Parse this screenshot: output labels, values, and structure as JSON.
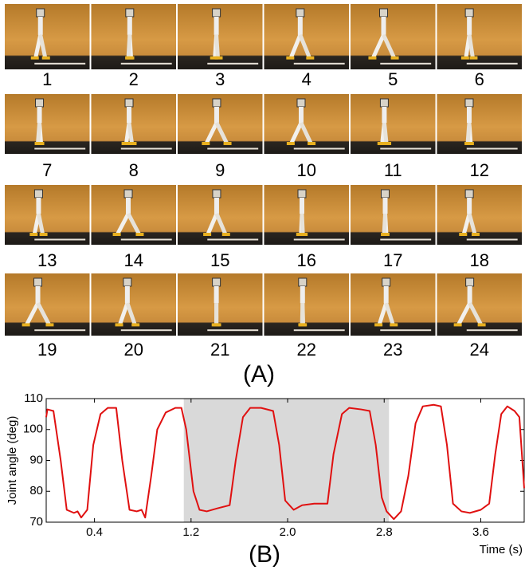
{
  "figure": {
    "frames": [
      "1",
      "2",
      "3",
      "4",
      "5",
      "6",
      "7",
      "8",
      "9",
      "10",
      "11",
      "12",
      "13",
      "14",
      "15",
      "16",
      "17",
      "18",
      "19",
      "20",
      "21",
      "22",
      "23",
      "24"
    ],
    "panel_a_label": "(A)",
    "panel_b_label": "(B)"
  },
  "chart_data": {
    "type": "line",
    "x_label": "Time (s)",
    "y_label": "Joint angle (deg)",
    "x": [
      0.0,
      0.01,
      0.06,
      0.12,
      0.17,
      0.23,
      0.26,
      0.29,
      0.34,
      0.39,
      0.45,
      0.51,
      0.58,
      0.63,
      0.69,
      0.75,
      0.79,
      0.82,
      0.87,
      0.92,
      0.99,
      1.07,
      1.12,
      1.16,
      1.22,
      1.27,
      1.33,
      1.42,
      1.52,
      1.57,
      1.63,
      1.69,
      1.78,
      1.88,
      1.93,
      1.98,
      2.05,
      2.12,
      2.22,
      2.33,
      2.38,
      2.45,
      2.51,
      2.61,
      2.68,
      2.73,
      2.78,
      2.82,
      2.88,
      2.94,
      3.0,
      3.06,
      3.12,
      3.21,
      3.27,
      3.32,
      3.37,
      3.44,
      3.51,
      3.6,
      3.67,
      3.72,
      3.77,
      3.82,
      3.88,
      3.92,
      3.96
    ],
    "series": [
      {
        "color": "#e01010",
        "values": [
          104,
          106.5,
          106,
          90,
          74,
          73,
          73.5,
          71.5,
          74,
          95,
          105,
          107,
          107,
          90,
          74,
          73.5,
          74,
          71.5,
          85,
          100,
          105.5,
          107,
          107,
          100,
          80,
          74,
          73.5,
          74.5,
          75.5,
          90,
          104,
          107,
          107,
          106,
          95,
          77,
          74,
          75.5,
          76,
          76,
          92,
          105,
          107,
          106.5,
          106,
          95,
          78,
          73.5,
          71,
          73.5,
          85,
          102,
          107.5,
          108,
          107.5,
          95,
          76,
          73.5,
          73,
          74,
          76,
          92,
          105,
          107.5,
          106,
          104,
          81
        ]
      }
    ],
    "xlim": [
      0,
      3.96
    ],
    "ylim": [
      70,
      110
    ],
    "xticks": [
      0.4,
      1.2,
      {
        "value": 2,
        "label": "2.0"
      },
      2.8,
      3.6
    ],
    "yticks": [
      70,
      80,
      90,
      100,
      110
    ],
    "highlight": {
      "x": [
        1.14,
        2.84
      ],
      "color": "#d9d9d9"
    }
  }
}
